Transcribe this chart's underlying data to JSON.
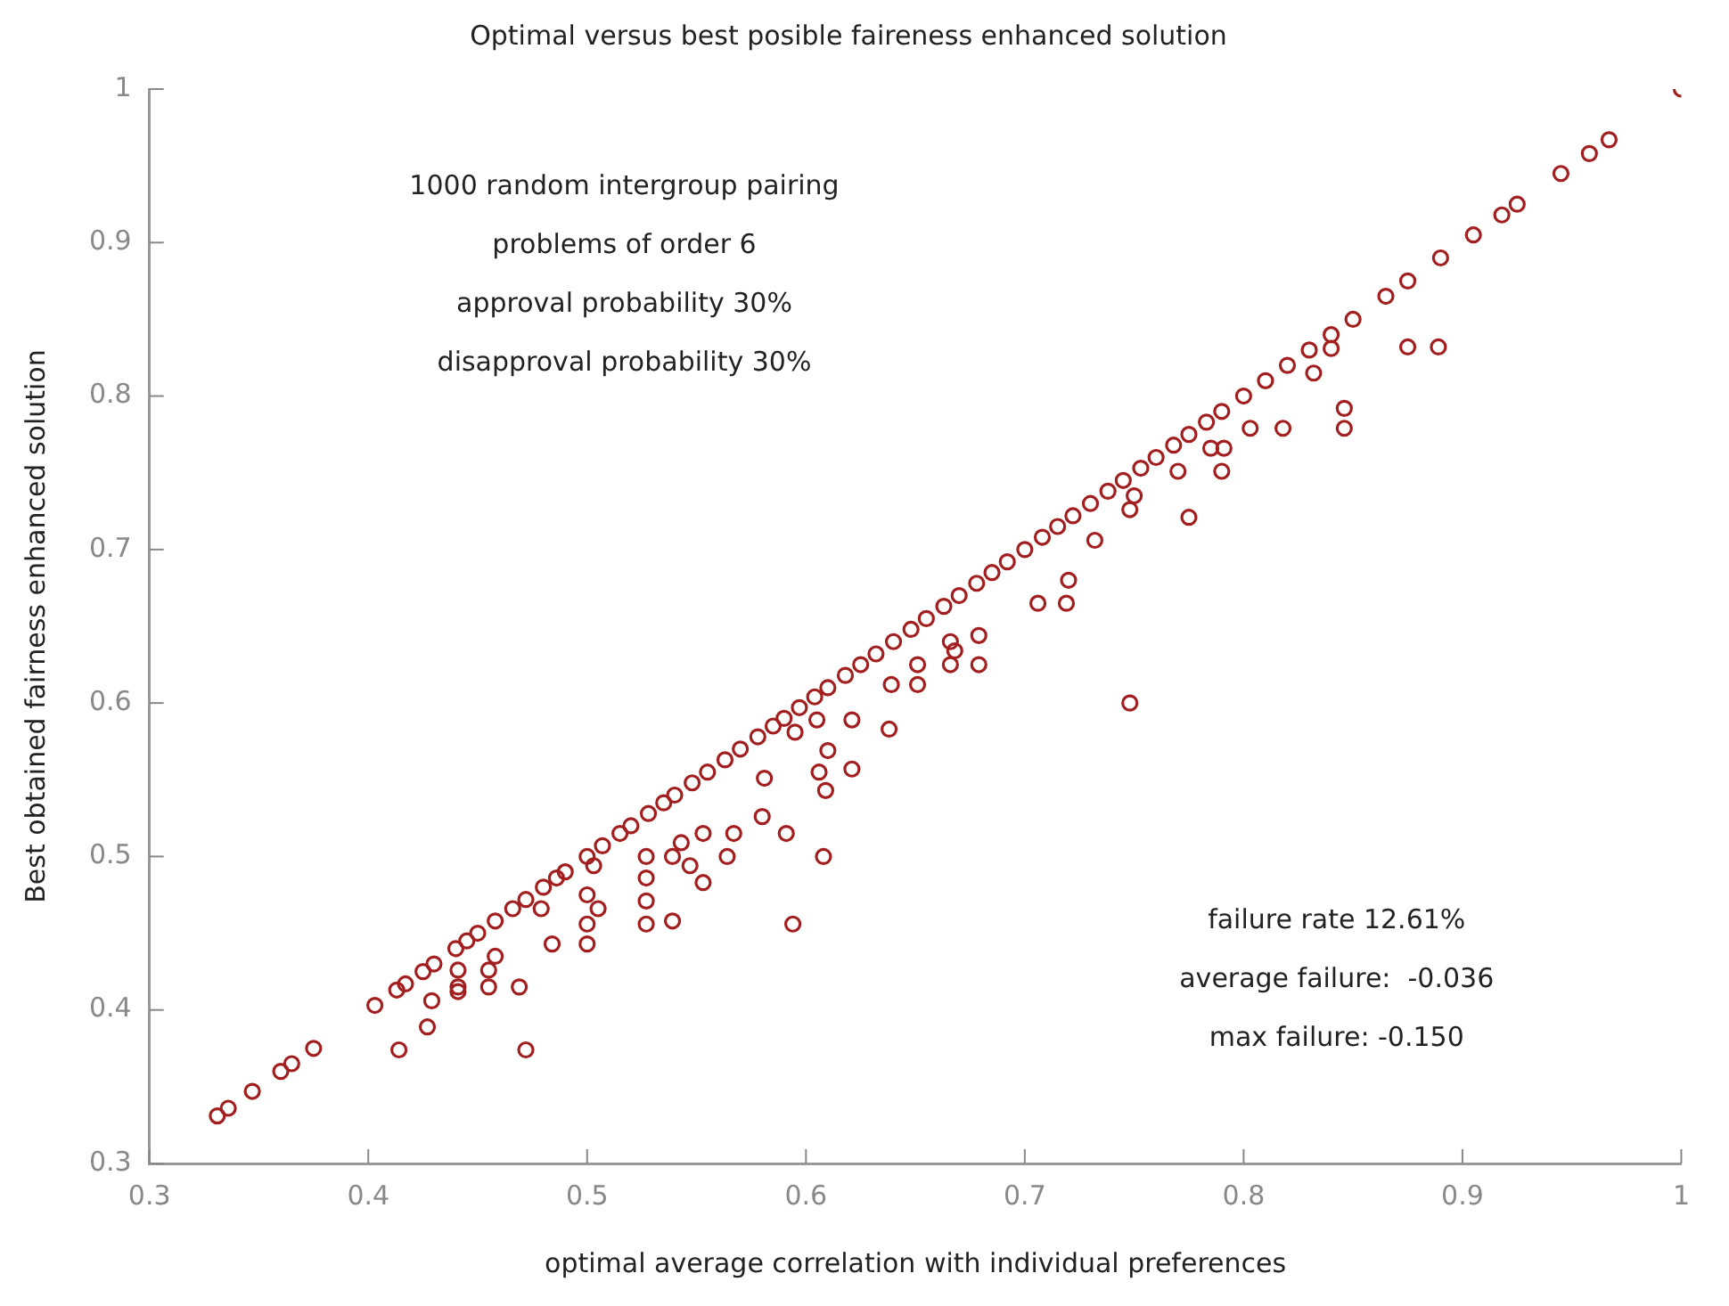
{
  "chart_data": {
    "type": "scatter",
    "title": "Optimal versus best posible faireness enhanced solution",
    "xlabel": "optimal average correlation with individual preferences",
    "ylabel": "Best obtained fairness enhanced solution",
    "annotations": [
      "1000 random intergroup pairing\nproblems of order 6\napproval probability 30%\ndisapproval probability 30%",
      "failure rate 12.61%\naverage failure:  -0.036\nmax failure: -0.150"
    ],
    "xlim": [
      0.3,
      1
    ],
    "ylim": [
      0.3,
      1
    ],
    "xticks": [
      0.3,
      0.4,
      0.5,
      0.6,
      0.7,
      0.8,
      0.9,
      1
    ],
    "yticks": [
      0.3,
      0.4,
      0.5,
      0.6,
      0.7,
      0.8,
      0.9,
      1
    ],
    "grid": false,
    "legend": false,
    "marker": "circle",
    "series": [
      {
        "color": "#a31f1f",
        "x": [
          0.331,
          0.336,
          0.347,
          0.36,
          0.365,
          0.375,
          0.403,
          0.413,
          0.417,
          0.425,
          0.43,
          0.44,
          0.445,
          0.45,
          0.458,
          0.466,
          0.472,
          0.48,
          0.486,
          0.49,
          0.5,
          0.507,
          0.515,
          0.52,
          0.528,
          0.535,
          0.54,
          0.548,
          0.555,
          0.563,
          0.57,
          0.578,
          0.585,
          0.59,
          0.597,
          0.604,
          0.61,
          0.618,
          0.625,
          0.632,
          0.64,
          0.648,
          0.655,
          0.663,
          0.67,
          0.678,
          0.685,
          0.692,
          0.7,
          0.708,
          0.715,
          0.722,
          0.73,
          0.738,
          0.745,
          0.753,
          0.76,
          0.768,
          0.775,
          0.783,
          0.79,
          0.8,
          0.81,
          0.82,
          0.83,
          0.84,
          0.85,
          0.865,
          0.875,
          0.89,
          0.905,
          0.918,
          0.925,
          0.945,
          0.958,
          0.967,
          1.0,
          0.414,
          0.427,
          0.429,
          0.441,
          0.441,
          0.441,
          0.455,
          0.455,
          0.458,
          0.469,
          0.472,
          0.484,
          0.479,
          0.5,
          0.5,
          0.5,
          0.505,
          0.503,
          0.527,
          0.527,
          0.527,
          0.527,
          0.539,
          0.539,
          0.543,
          0.553,
          0.553,
          0.547,
          0.567,
          0.564,
          0.58,
          0.581,
          0.591,
          0.594,
          0.595,
          0.605,
          0.608,
          0.609,
          0.606,
          0.61,
          0.621,
          0.621,
          0.638,
          0.639,
          0.651,
          0.651,
          0.666,
          0.668,
          0.679,
          0.679,
          0.666,
          0.748,
          0.706,
          0.72,
          0.719,
          0.732,
          0.748,
          0.75,
          0.77,
          0.775,
          0.785,
          0.79,
          0.791,
          0.803,
          0.818,
          0.832,
          0.846,
          0.846,
          0.875,
          0.889,
          0.84
        ],
        "values": [
          0.331,
          0.336,
          0.347,
          0.36,
          0.365,
          0.375,
          0.403,
          0.413,
          0.417,
          0.425,
          0.43,
          0.44,
          0.445,
          0.45,
          0.458,
          0.466,
          0.472,
          0.48,
          0.486,
          0.49,
          0.5,
          0.507,
          0.515,
          0.52,
          0.528,
          0.535,
          0.54,
          0.548,
          0.555,
          0.563,
          0.57,
          0.578,
          0.585,
          0.59,
          0.597,
          0.604,
          0.61,
          0.618,
          0.625,
          0.632,
          0.64,
          0.648,
          0.655,
          0.663,
          0.67,
          0.678,
          0.685,
          0.692,
          0.7,
          0.708,
          0.715,
          0.722,
          0.73,
          0.738,
          0.745,
          0.753,
          0.76,
          0.768,
          0.775,
          0.783,
          0.79,
          0.8,
          0.81,
          0.82,
          0.83,
          0.84,
          0.85,
          0.865,
          0.875,
          0.89,
          0.905,
          0.918,
          0.925,
          0.945,
          0.958,
          0.967,
          1.0,
          0.374,
          0.389,
          0.406,
          0.415,
          0.426,
          0.412,
          0.415,
          0.426,
          0.435,
          0.415,
          0.374,
          0.443,
          0.466,
          0.443,
          0.456,
          0.475,
          0.466,
          0.494,
          0.456,
          0.471,
          0.486,
          0.5,
          0.5,
          0.458,
          0.509,
          0.515,
          0.483,
          0.494,
          0.515,
          0.5,
          0.526,
          0.551,
          0.515,
          0.456,
          0.581,
          0.589,
          0.5,
          0.543,
          0.555,
          0.569,
          0.557,
          0.589,
          0.583,
          0.612,
          0.625,
          0.612,
          0.625,
          0.634,
          0.625,
          0.644,
          0.64,
          0.6,
          0.665,
          0.68,
          0.665,
          0.706,
          0.726,
          0.735,
          0.751,
          0.721,
          0.766,
          0.751,
          0.766,
          0.779,
          0.779,
          0.815,
          0.779,
          0.792,
          0.832,
          0.832,
          0.831
        ]
      }
    ]
  }
}
